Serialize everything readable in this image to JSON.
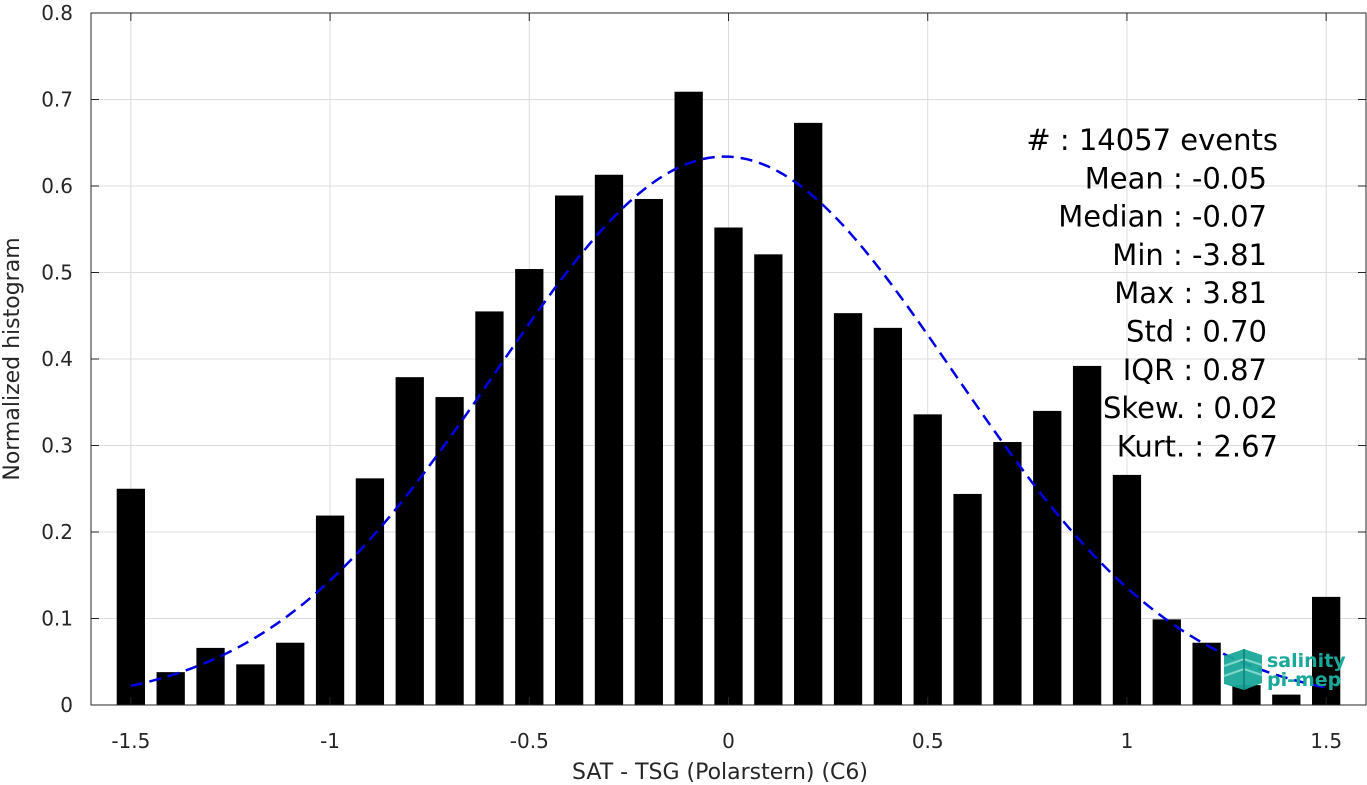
{
  "chart_data": {
    "type": "bar",
    "xlabel": "SAT - TSG (Polarstern) (C6)",
    "ylabel": "Normalized histogram",
    "xlim": [
      -1.6,
      1.6
    ],
    "ylim": [
      0,
      0.8
    ],
    "grid": true,
    "x_ticks": [
      -1.5,
      -1,
      -0.5,
      0,
      0.5,
      1,
      1.5
    ],
    "x_tick_labels": [
      "-1.5",
      "-1",
      "-0.5",
      "0",
      "0.5",
      "1",
      "1.5"
    ],
    "y_ticks": [
      0,
      0.1,
      0.2,
      0.3,
      0.4,
      0.5,
      0.6,
      0.7,
      0.8
    ],
    "y_tick_labels": [
      "0",
      "0.1",
      "0.2",
      "0.3",
      "0.4",
      "0.5",
      "0.6",
      "0.7",
      "0.8"
    ],
    "bar_color": "#000000",
    "bars": {
      "x": [
        -1.5,
        -1.4,
        -1.3,
        -1.2,
        -1.1,
        -1.0,
        -0.9,
        -0.8,
        -0.7,
        -0.6,
        -0.5,
        -0.4,
        -0.3,
        -0.2,
        -0.1,
        0.0,
        0.1,
        0.2,
        0.3,
        0.4,
        0.5,
        0.6,
        0.7,
        0.8,
        0.9,
        1.0,
        1.1,
        1.2,
        1.3,
        1.4,
        1.5
      ],
      "values": [
        0.25,
        0.038,
        0.066,
        0.047,
        0.072,
        0.219,
        0.262,
        0.379,
        0.356,
        0.455,
        0.504,
        0.589,
        0.613,
        0.585,
        0.709,
        0.552,
        0.521,
        0.673,
        0.453,
        0.436,
        0.336,
        0.244,
        0.304,
        0.34,
        0.392,
        0.266,
        0.099,
        0.072,
        0.023,
        0.012,
        0.125
      ]
    },
    "fit": {
      "type": "gaussian",
      "color": "#0000e6",
      "style": "dashed",
      "x_range": [
        -1.5,
        1.5
      ],
      "mean": -0.01,
      "peak": 0.634,
      "sigma": 0.575
    },
    "stats": [
      "#  : 14057 events",
      "Mean : -0.05",
      "Median : -0.07",
      "Min : -3.81",
      "Max : 3.81",
      "Std : 0.70",
      "IQR : 0.87",
      "Skew. : 0.02",
      "Kurt. : 2.67"
    ]
  },
  "logo": {
    "name": "salinity-pi-mep-logo",
    "line1": "salinity",
    "line2": "pi-mep",
    "color": "#1aa89a"
  }
}
